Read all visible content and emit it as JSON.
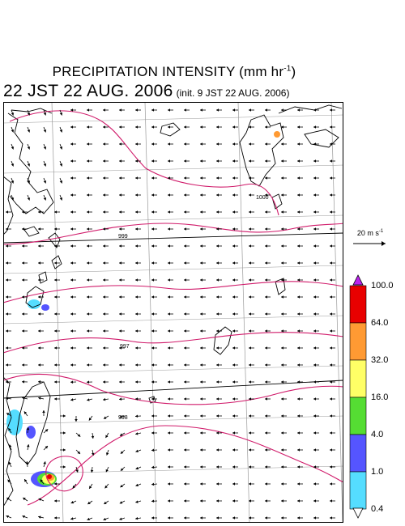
{
  "header": {
    "title": "PRECIPITATION INTENSITY (mm hr",
    "title_unit_exp": "-1",
    "title_close": ")",
    "valid_time": "22 JST 22 AUG. 2006",
    "init_note": "(init. 9 JST 22 AUG. 2006)"
  },
  "map": {
    "contour_labels": [
      "999",
      "1000",
      "997",
      "998"
    ],
    "line_color": "#d01a6a",
    "coast_color": "#000000",
    "grid_color": "#9a9a9a",
    "precip_cells": [
      {
        "level": 2,
        "region": "cyclone-east-taiwan"
      },
      {
        "level": 3,
        "region": "cyclone-east-taiwan"
      },
      {
        "level": 4,
        "region": "cyclone-east-taiwan"
      },
      {
        "level": 5,
        "region": "cyclone-east-taiwan"
      },
      {
        "level": 6,
        "region": "cyclone-east-taiwan"
      },
      {
        "level": 1,
        "region": "taiwan"
      },
      {
        "level": 2,
        "region": "taiwan"
      },
      {
        "level": 1,
        "region": "ryukyu"
      },
      {
        "level": 2,
        "region": "ryukyu"
      },
      {
        "level": 5,
        "region": "kyushu"
      }
    ]
  },
  "reference_vector": {
    "label": "20 m s",
    "unit_exp": "-1"
  },
  "colorbar": {
    "labels": [
      "100.0",
      "64.0",
      "32.0",
      "16.0",
      "4.0",
      "1.0",
      "0.4"
    ],
    "colors": [
      "#e80000",
      "#ff9a33",
      "#ffff66",
      "#55dd33",
      "#5555ff",
      "#55ddff"
    ],
    "over_color": "#bb22ee",
    "under_color": "#ffffff"
  }
}
